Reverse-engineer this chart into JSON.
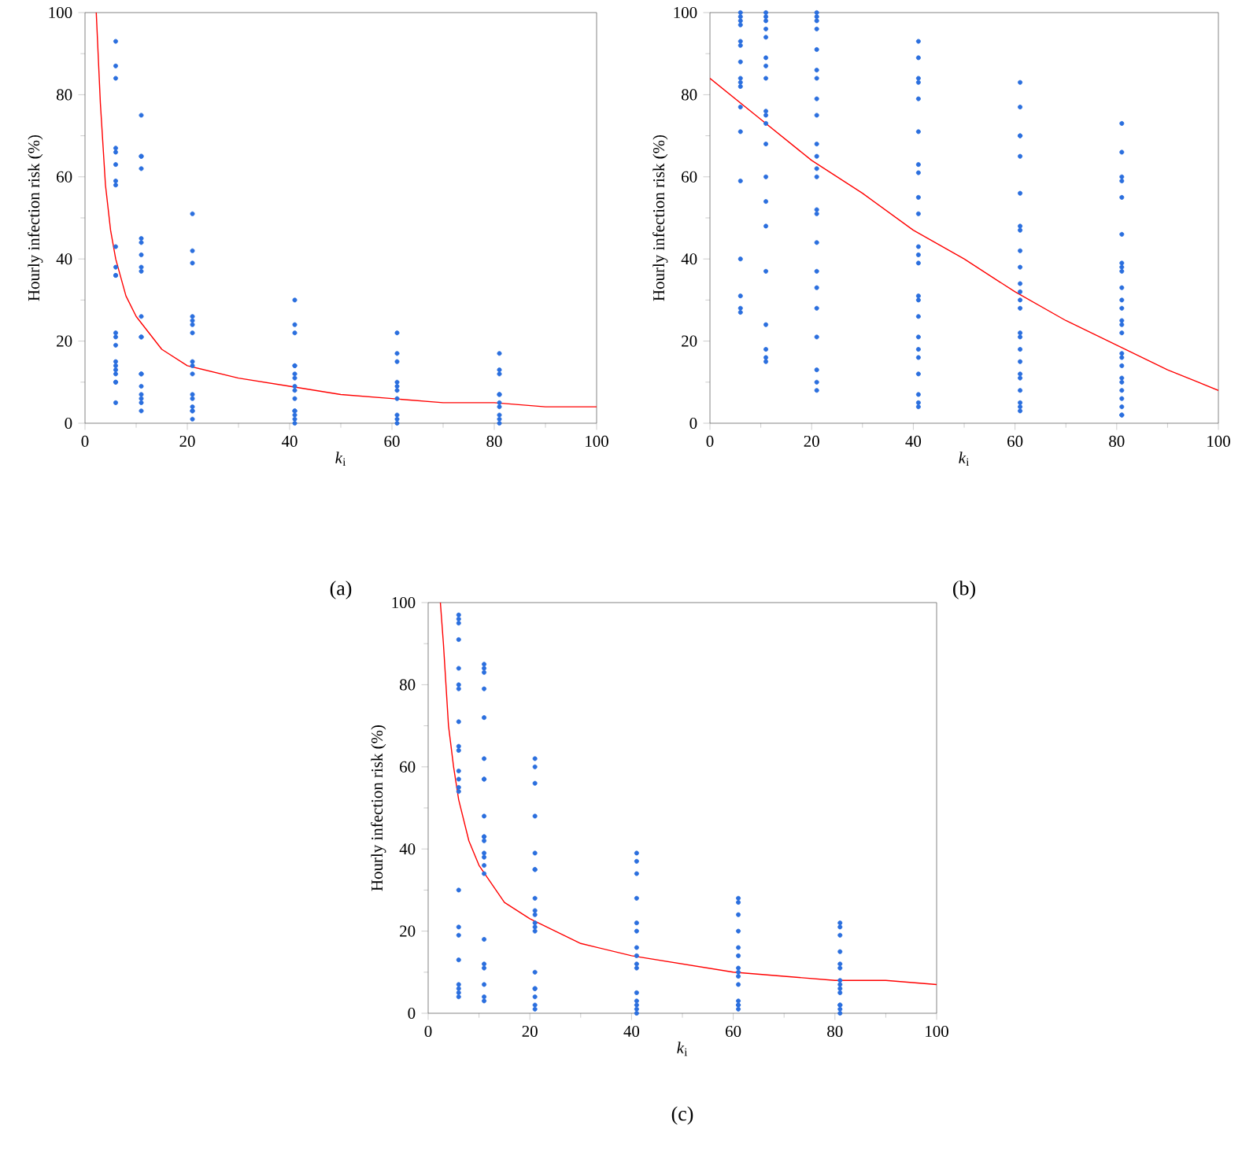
{
  "chart_data": [
    {
      "type": "scatter",
      "title": "(a)",
      "xlabel": "*k*$_{i}$",
      "ylabel": "Hourly infection risk (%)",
      "xlim": [
        0,
        100
      ],
      "ylim": [
        0,
        100
      ],
      "xticks": [
        0,
        20,
        40,
        60,
        80,
        100
      ],
      "yticks": [
        0,
        20,
        40,
        60,
        80,
        100
      ],
      "legend": false,
      "series": [
        {
          "marker": "circle",
          "color": "#2b6fde",
          "x": [
            6,
            6,
            6,
            6,
            6,
            6,
            6,
            6,
            6,
            6,
            6,
            6,
            6,
            6,
            6,
            6,
            6,
            6,
            6,
            6,
            6,
            6,
            11,
            11,
            11,
            11,
            11,
            11,
            11,
            11,
            11,
            11,
            11,
            11,
            11,
            11,
            11,
            11,
            11,
            11,
            11,
            21,
            21,
            21,
            21,
            21,
            21,
            21,
            21,
            21,
            21,
            21,
            21,
            21,
            21,
            21,
            21,
            41,
            41,
            41,
            41,
            41,
            41,
            41,
            41,
            41,
            41,
            41,
            41,
            41,
            41,
            41,
            61,
            61,
            61,
            61,
            61,
            61,
            61,
            61,
            61,
            61,
            81,
            81,
            81,
            81,
            81,
            81,
            81,
            81,
            81,
            81
          ],
          "values": [
            93,
            87,
            84,
            67,
            66,
            63,
            59,
            58,
            43,
            38,
            36,
            36,
            22,
            21,
            19,
            15,
            14,
            13,
            12,
            10,
            10,
            5,
            75,
            65,
            65,
            62,
            45,
            44,
            41,
            38,
            37,
            26,
            21,
            21,
            12,
            12,
            9,
            7,
            6,
            5,
            3,
            51,
            42,
            39,
            26,
            25,
            24,
            22,
            15,
            14,
            12,
            7,
            6,
            4,
            3,
            3,
            1,
            30,
            24,
            22,
            14,
            14,
            12,
            11,
            9,
            8,
            6,
            3,
            3,
            2,
            1,
            0,
            22,
            17,
            15,
            10,
            9,
            8,
            6,
            2,
            1,
            0,
            17,
            13,
            12,
            7,
            7,
            5,
            4,
            2,
            1,
            0
          ]
        },
        {
          "type": "line",
          "color": "#ff0000",
          "x": [
            2.2,
            3,
            4,
            5,
            6,
            8,
            10,
            15,
            20,
            30,
            40,
            50,
            60,
            70,
            80,
            90,
            100
          ],
          "values": [
            100,
            78,
            58,
            47,
            40,
            31,
            26,
            18,
            14,
            11,
            9,
            7,
            6,
            5,
            5,
            4,
            4
          ]
        }
      ]
    },
    {
      "type": "scatter",
      "title": "(b)",
      "xlabel": "*k*$_{i}$",
      "ylabel": "Hourly infection risk (%)",
      "xlim": [
        0,
        100
      ],
      "ylim": [
        0,
        100
      ],
      "xticks": [
        0,
        20,
        40,
        60,
        80,
        100
      ],
      "yticks": [
        0,
        20,
        40,
        60,
        80,
        100
      ],
      "legend": false,
      "series": [
        {
          "marker": "circle",
          "color": "#2b6fde",
          "x": [
            6,
            6,
            6,
            6,
            6,
            6,
            6,
            6,
            6,
            6,
            6,
            6,
            6,
            6,
            6,
            6,
            6,
            11,
            11,
            11,
            11,
            11,
            11,
            11,
            11,
            11,
            11,
            11,
            11,
            11,
            11,
            11,
            11,
            11,
            11,
            11,
            11,
            21,
            21,
            21,
            21,
            21,
            21,
            21,
            21,
            21,
            21,
            21,
            21,
            21,
            21,
            21,
            21,
            21,
            21,
            21,
            21,
            21,
            21,
            21,
            41,
            41,
            41,
            41,
            41,
            41,
            41,
            41,
            41,
            41,
            41,
            41,
            41,
            41,
            41,
            41,
            41,
            41,
            41,
            41,
            41,
            41,
            41,
            61,
            61,
            61,
            61,
            61,
            61,
            61,
            61,
            61,
            61,
            61,
            61,
            61,
            61,
            61,
            61,
            61,
            61,
            61,
            61,
            61,
            61,
            61,
            61,
            81,
            81,
            81,
            81,
            81,
            81,
            81,
            81,
            81,
            81,
            81,
            81,
            81,
            81,
            81,
            81,
            81,
            81,
            81,
            81,
            81,
            81,
            81,
            81,
            81
          ],
          "values": [
            100,
            99,
            98,
            97,
            93,
            92,
            88,
            84,
            83,
            82,
            77,
            71,
            59,
            40,
            31,
            28,
            27,
            100,
            99,
            98,
            96,
            94,
            89,
            87,
            84,
            76,
            75,
            73,
            68,
            60,
            54,
            48,
            37,
            24,
            18,
            16,
            15,
            100,
            99,
            98,
            96,
            91,
            86,
            84,
            79,
            75,
            68,
            65,
            62,
            60,
            52,
            51,
            44,
            37,
            33,
            28,
            21,
            13,
            10,
            8,
            93,
            89,
            84,
            83,
            79,
            71,
            63,
            61,
            55,
            51,
            43,
            41,
            39,
            31,
            30,
            26,
            21,
            18,
            16,
            12,
            7,
            5,
            4,
            83,
            77,
            70,
            70,
            65,
            56,
            48,
            47,
            42,
            38,
            34,
            32,
            30,
            28,
            22,
            21,
            18,
            15,
            12,
            11,
            8,
            5,
            4,
            3,
            73,
            66,
            60,
            59,
            55,
            46,
            39,
            38,
            37,
            33,
            30,
            28,
            25,
            24,
            22,
            17,
            16,
            14,
            11,
            10,
            8,
            6,
            4,
            2,
            2
          ]
        },
        {
          "type": "line",
          "color": "#ff0000",
          "x": [
            0,
            10,
            20,
            30,
            40,
            50,
            60,
            70,
            80,
            90,
            100
          ],
          "values": [
            84,
            74,
            64,
            56,
            47,
            40,
            32,
            25,
            19,
            13,
            8
          ]
        }
      ]
    },
    {
      "type": "scatter",
      "title": "(c)",
      "xlabel": "*k*$_{i}$",
      "ylabel": "Hourly infection risk (%)",
      "xlim": [
        0,
        100
      ],
      "ylim": [
        0,
        100
      ],
      "xticks": [
        0,
        20,
        40,
        60,
        80,
        100
      ],
      "yticks": [
        0,
        20,
        40,
        60,
        80,
        100
      ],
      "legend": false,
      "series": [
        {
          "marker": "circle",
          "color": "#2b6fde",
          "x": [
            6,
            6,
            6,
            6,
            6,
            6,
            6,
            6,
            6,
            6,
            6,
            6,
            6,
            6,
            6,
            6,
            6,
            6,
            6,
            6,
            6,
            6,
            11,
            11,
            11,
            11,
            11,
            11,
            11,
            11,
            11,
            11,
            11,
            11,
            11,
            11,
            11,
            11,
            11,
            11,
            11,
            11,
            11,
            11,
            21,
            21,
            21,
            21,
            21,
            21,
            21,
            21,
            21,
            21,
            21,
            21,
            21,
            21,
            21,
            21,
            21,
            21,
            21,
            41,
            41,
            41,
            41,
            41,
            41,
            41,
            41,
            41,
            41,
            41,
            41,
            41,
            41,
            41,
            61,
            61,
            61,
            61,
            61,
            61,
            61,
            61,
            61,
            61,
            61,
            61,
            61,
            61,
            81,
            81,
            81,
            81,
            81,
            81,
            81,
            81,
            81,
            81,
            81,
            81,
            81,
            81
          ],
          "values": [
            97,
            96,
            95,
            91,
            84,
            80,
            79,
            71,
            65,
            64,
            59,
            57,
            55,
            54,
            30,
            21,
            19,
            13,
            7,
            6,
            5,
            4,
            85,
            84,
            83,
            79,
            72,
            62,
            57,
            57,
            48,
            43,
            43,
            42,
            39,
            38,
            36,
            34,
            18,
            12,
            11,
            7,
            4,
            3,
            62,
            60,
            56,
            48,
            39,
            35,
            35,
            28,
            25,
            24,
            22,
            21,
            20,
            10,
            6,
            6,
            4,
            2,
            1,
            39,
            37,
            34,
            28,
            22,
            20,
            16,
            14,
            12,
            11,
            5,
            3,
            2,
            1,
            0,
            28,
            27,
            24,
            20,
            16,
            14,
            11,
            10,
            9,
            7,
            3,
            2,
            2,
            1,
            22,
            21,
            19,
            15,
            12,
            11,
            8,
            7,
            6,
            5,
            2,
            2,
            1,
            0
          ]
        },
        {
          "type": "line",
          "color": "#ff0000",
          "x": [
            2.4,
            3,
            4,
            5,
            6,
            8,
            10,
            15,
            20,
            30,
            40,
            50,
            60,
            70,
            80,
            90,
            100
          ],
          "values": [
            100,
            90,
            70,
            60,
            52,
            42,
            36,
            27,
            23,
            17,
            14,
            12,
            10,
            9,
            8,
            8,
            7
          ]
        }
      ]
    }
  ]
}
